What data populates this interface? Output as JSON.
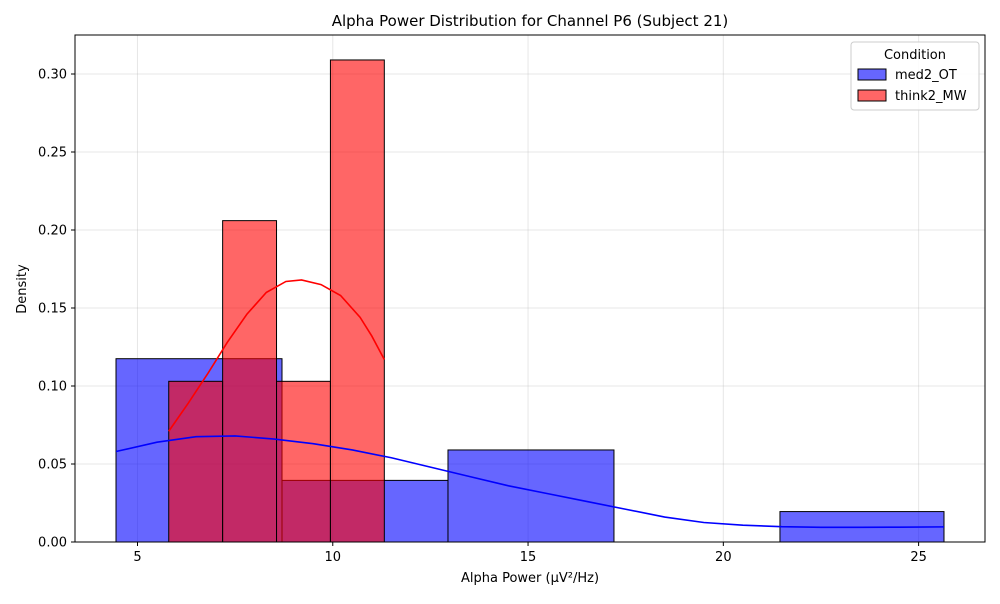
{
  "chart_data": {
    "type": "histogram",
    "title": "Alpha Power Distribution for Channel P6 (Subject 21)",
    "xlabel": "Alpha Power (µV²/Hz)",
    "ylabel": "Density",
    "xlim": [
      3.4,
      26.7
    ],
    "ylim": [
      0,
      0.325
    ],
    "xticks": [
      5,
      10,
      15,
      20,
      25
    ],
    "yticks": [
      0.0,
      0.05,
      0.1,
      0.15,
      0.2,
      0.25,
      0.3
    ],
    "ytick_labels": [
      "0.00",
      "0.05",
      "0.10",
      "0.15",
      "0.20",
      "0.25",
      "0.30"
    ],
    "grid": true,
    "legend": {
      "title": "Condition",
      "position": "top-right"
    },
    "series": [
      {
        "name": "med2_OT",
        "color": "#0000ff",
        "kde_color": "#0000ff",
        "bins": [
          {
            "x0": 4.45,
            "x1": 8.7,
            "density": 0.1175
          },
          {
            "x0": 8.7,
            "x1": 12.95,
            "density": 0.0395
          },
          {
            "x0": 12.95,
            "x1": 17.2,
            "density": 0.059
          },
          {
            "x0": 17.2,
            "x1": 21.45,
            "density": 0.0
          },
          {
            "x0": 21.45,
            "x1": 25.65,
            "density": 0.0195
          }
        ],
        "kde": [
          [
            4.45,
            0.058
          ],
          [
            5.5,
            0.064
          ],
          [
            6.5,
            0.0675
          ],
          [
            7.5,
            0.068
          ],
          [
            8.5,
            0.066
          ],
          [
            9.5,
            0.063
          ],
          [
            10.5,
            0.059
          ],
          [
            11.5,
            0.054
          ],
          [
            12.5,
            0.048
          ],
          [
            13.5,
            0.042
          ],
          [
            14.5,
            0.036
          ],
          [
            15.5,
            0.031
          ],
          [
            16.5,
            0.026
          ],
          [
            17.5,
            0.021
          ],
          [
            18.5,
            0.016
          ],
          [
            19.5,
            0.0125
          ],
          [
            20.5,
            0.0108
          ],
          [
            21.5,
            0.0098
          ],
          [
            22.5,
            0.0094
          ],
          [
            23.5,
            0.0094
          ],
          [
            24.5,
            0.0095
          ],
          [
            25.65,
            0.0097
          ]
        ]
      },
      {
        "name": "think2_MW",
        "color": "#ff0000",
        "kde_color": "#ff0000",
        "bins": [
          {
            "x0": 5.8,
            "x1": 7.18,
            "density": 0.103
          },
          {
            "x0": 7.18,
            "x1": 8.56,
            "density": 0.206
          },
          {
            "x0": 8.56,
            "x1": 9.94,
            "density": 0.103
          },
          {
            "x0": 9.94,
            "x1": 11.32,
            "density": 0.309
          }
        ],
        "kde": [
          [
            5.8,
            0.071
          ],
          [
            6.3,
            0.089
          ],
          [
            6.8,
            0.108
          ],
          [
            7.3,
            0.128
          ],
          [
            7.8,
            0.146
          ],
          [
            8.3,
            0.16
          ],
          [
            8.8,
            0.167
          ],
          [
            9.2,
            0.168
          ],
          [
            9.7,
            0.165
          ],
          [
            10.2,
            0.158
          ],
          [
            10.7,
            0.144
          ],
          [
            11.0,
            0.132
          ],
          [
            11.32,
            0.117
          ]
        ]
      }
    ]
  }
}
